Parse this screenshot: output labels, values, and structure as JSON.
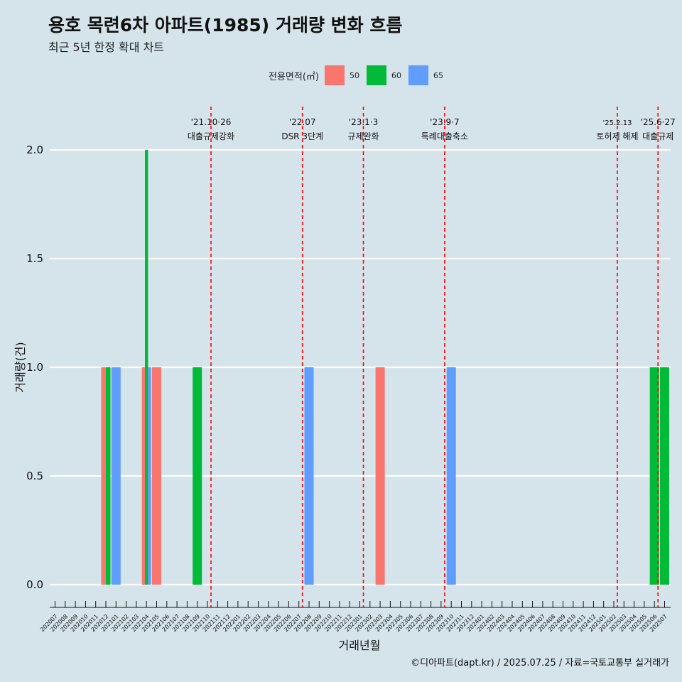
{
  "title": "용호 목련6차 아파트(1985) 거래량 변화 흐름",
  "subtitle": "최근 5년 한정 확대 차트",
  "legend": {
    "title": "전용면적(㎡)",
    "items": [
      {
        "label": "50",
        "color": "#f8766d"
      },
      {
        "label": "60",
        "color": "#00ba38"
      },
      {
        "label": "65",
        "color": "#619cff"
      }
    ]
  },
  "footer": "©디아파트(dapt.kr) / 2025.07.25 / 자료=국토교통부 실거래가",
  "chart_data": {
    "type": "bar",
    "xlabel": "거래년월",
    "ylabel": "거래량(건)",
    "ylim": [
      0,
      2
    ],
    "yticks": [
      "0.0",
      "0.5",
      "1.0",
      "1.5",
      "2.0"
    ],
    "grid": true,
    "legend_position": "top",
    "categories": [
      "202007",
      "202008",
      "202009",
      "202010",
      "202011",
      "202012",
      "202101",
      "202102",
      "202103",
      "202104",
      "202105",
      "202106",
      "202107",
      "202108",
      "202109",
      "202110",
      "202111",
      "202112",
      "202201",
      "202202",
      "202203",
      "202204",
      "202205",
      "202206",
      "202207",
      "202208",
      "202209",
      "202210",
      "202211",
      "202212",
      "202301",
      "202302",
      "202303",
      "202304",
      "202305",
      "202306",
      "202307",
      "202308",
      "202309",
      "202310",
      "202311",
      "202312",
      "202401",
      "202402",
      "202403",
      "202404",
      "202405",
      "202406",
      "202407",
      "202408",
      "202409",
      "202410",
      "202411",
      "202412",
      "202501",
      "202502",
      "202503",
      "202504",
      "202505",
      "202506",
      "202507"
    ],
    "bars": [
      {
        "month": "202012",
        "area": "50",
        "value": 1
      },
      {
        "month": "202012",
        "area": "60",
        "value": 1
      },
      {
        "month": "202101",
        "area": "65",
        "value": 1
      },
      {
        "month": "202104",
        "area": "50",
        "value": 1
      },
      {
        "month": "202104",
        "area": "60",
        "value": 2
      },
      {
        "month": "202104",
        "area": "65",
        "value": 1
      },
      {
        "month": "202105",
        "area": "50",
        "value": 1
      },
      {
        "month": "202109",
        "area": "60",
        "value": 1
      },
      {
        "month": "202208",
        "area": "65",
        "value": 1
      },
      {
        "month": "202303",
        "area": "50",
        "value": 1
      },
      {
        "month": "202310",
        "area": "65",
        "value": 1
      },
      {
        "month": "202506",
        "area": "60",
        "value": 1
      },
      {
        "month": "202507",
        "area": "60",
        "value": 1
      }
    ],
    "events": [
      {
        "date": "'21.10·26",
        "label": "대출규제강화",
        "month": "202110"
      },
      {
        "date": "'22.07",
        "label": "DSR 3단계",
        "month": "202207"
      },
      {
        "date": "'23.1·3",
        "label": "규제완화",
        "month": "202301"
      },
      {
        "date": "'23.9·7",
        "label": "특례대출축소",
        "month": "202309"
      },
      {
        "date": "'25.2.13",
        "label": "토허제 해제",
        "month": "202502"
      },
      {
        "date": "'25.6·27",
        "label": "대출규제",
        "month": "202506"
      }
    ]
  }
}
